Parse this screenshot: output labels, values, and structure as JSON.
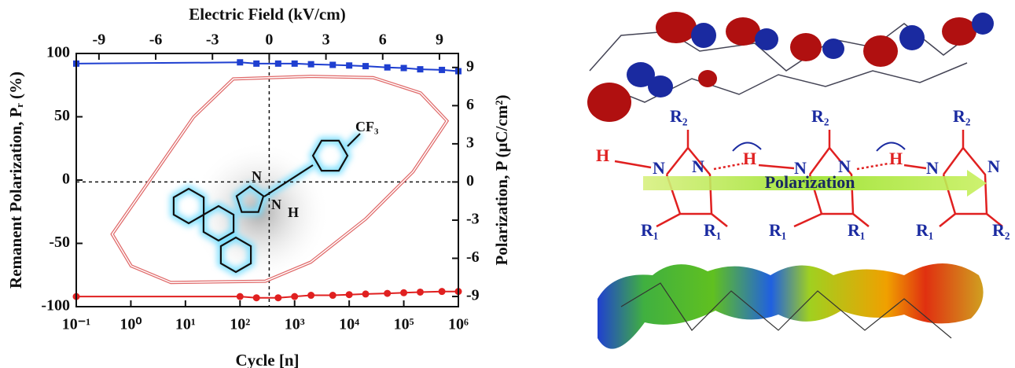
{
  "chart_data": {
    "type": "line",
    "xlabel": "Cycle [n]",
    "x2label": "Electric Field (kV/cm)",
    "ylabel": "Remanent Polarization, Pᵣ (%)",
    "y2label": "Polarization, P (μC/cm²)",
    "xscale": "log",
    "xlim": [
      0.1,
      1000000
    ],
    "xticks": [
      {
        "value": 0.1,
        "label": "10⁻¹"
      },
      {
        "value": 1,
        "label": "10⁰"
      },
      {
        "value": 10,
        "label": "10¹"
      },
      {
        "value": 100,
        "label": "10²"
      },
      {
        "value": 1000,
        "label": "10³"
      },
      {
        "value": 10000,
        "label": "10⁴"
      },
      {
        "value": 100000,
        "label": "10⁵"
      },
      {
        "value": 1000000,
        "label": "10⁶"
      }
    ],
    "x2lim": [
      -10.2,
      10
    ],
    "x2ticks": [
      -9,
      -6,
      -3,
      0,
      3,
      6,
      9
    ],
    "ylim": [
      -100,
      100
    ],
    "yticks": [
      -100,
      -50,
      0,
      50,
      100
    ],
    "y2lim": [
      -9.8,
      10.1
    ],
    "y2ticks": [
      -9,
      -6,
      -3,
      0,
      3,
      6,
      9
    ],
    "zero_lines": true,
    "series": [
      {
        "color": "#1f3fd0",
        "marker": "square",
        "x": [
          0.1,
          100,
          200,
          500,
          1000,
          2000,
          5000,
          10000,
          20000,
          50000,
          100000,
          200000,
          500000,
          1000000
        ],
        "values": [
          92,
          93,
          92,
          92,
          92,
          91.5,
          91,
          90.5,
          90,
          89,
          88.5,
          87.5,
          87,
          86
        ]
      },
      {
        "color": "#e02020",
        "marker": "circle",
        "x": [
          0.1,
          100,
          200,
          500,
          1000,
          2000,
          5000,
          10000,
          20000,
          50000,
          100000,
          200000,
          500000,
          1000000
        ],
        "values": [
          -92,
          -92,
          -93,
          -93,
          -92,
          -91,
          -91,
          -90.5,
          -90,
          -89.5,
          -89,
          -88.5,
          -88,
          -88
        ]
      },
      {
        "color": "#e06a6a",
        "marker": "ring",
        "xaxis": "x2",
        "axis": "y2",
        "x": [
          -8.3,
          -6.0,
          -4.0,
          -1.9,
          2.2,
          5.5,
          8.0,
          9.4,
          7.6,
          5.1,
          2.2,
          -0.2,
          -5.2,
          -7.3
        ],
        "values": [
          -4.1,
          0.8,
          5.1,
          8.1,
          8.3,
          8.2,
          7.0,
          4.8,
          0.8,
          -2.9,
          -6.3,
          -7.8,
          -7.9,
          -6.6
        ]
      }
    ],
    "annotations": [
      "CF₃",
      "N",
      "N",
      "H"
    ]
  },
  "diagram": {
    "labels": [
      "R₂",
      "R₂",
      "R₂",
      "H",
      "N",
      "N",
      "H",
      "N",
      "N",
      "H",
      "N",
      "N",
      "Polarization",
      "R₁",
      "R₁",
      "R₁",
      "R₁",
      "R₁",
      "R₂"
    ]
  }
}
